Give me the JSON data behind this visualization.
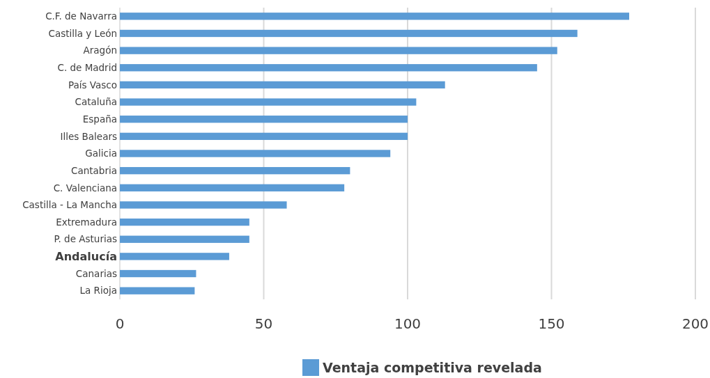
{
  "chart_data": {
    "type": "bar",
    "orientation": "horizontal",
    "categories": [
      "C.F. de Navarra",
      "Castilla y León",
      "Aragón",
      "C. de Madrid",
      "País Vasco",
      "Cataluña",
      "España",
      "Illes Balears",
      "Galicia",
      "Cantabria",
      "C. Valenciana",
      "Castilla - La Mancha",
      "Extremadura",
      "P. de Asturias",
      "Andalucía",
      "Canarias",
      "La Rioja"
    ],
    "series": [
      {
        "name": "Ventaja competitiva revelada",
        "color": "#5b9bd5",
        "values": [
          177,
          159,
          152,
          145,
          113,
          103,
          100,
          100,
          94,
          80,
          78,
          58,
          45,
          45,
          38,
          26.5,
          26
        ]
      }
    ],
    "xlim": [
      0,
      200
    ],
    "xticks": [
      0,
      50,
      100,
      150,
      200
    ],
    "grid": "x",
    "legend": "bottom"
  }
}
